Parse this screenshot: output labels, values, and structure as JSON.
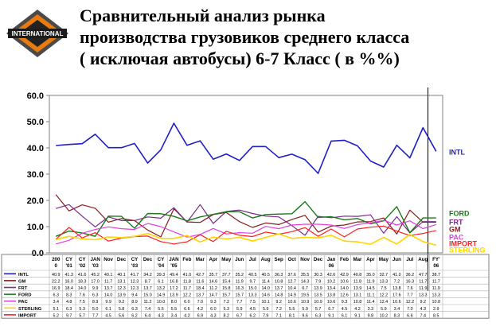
{
  "brand": {
    "logo_text": "INTERNATIONAL",
    "logo_icon": "international-diamond-logo"
  },
  "title_lines": [
    "Сравнительный анализ рынка",
    "производства грузовиков среднего класса",
    "( исключая автобусы) 6-7 Класс  ( в %%)"
  ],
  "chart_data": {
    "type": "line",
    "title": "Сравнительный анализ рынка производства грузовиков среднего класса ( исключая автобусы) 6-7 Класс  ( в %%)",
    "xlabel": "",
    "ylabel": "",
    "ylim": [
      0,
      60
    ],
    "yticks": [
      "0.0",
      "10.0",
      "20.0",
      "30.0",
      "40.0",
      "50.0",
      "60.0"
    ],
    "grid": false,
    "legend": "right",
    "categories": [
      [
        "200",
        "0"
      ],
      [
        "CY",
        "'01"
      ],
      [
        "CY",
        "'02"
      ],
      [
        "JAN",
        "'03"
      ],
      [
        "Nov",
        ""
      ],
      [
        "Dec",
        ""
      ],
      [
        "CY",
        "'03"
      ],
      [
        "Dec",
        ""
      ],
      [
        "CY",
        "'04"
      ],
      [
        "JAN",
        "'05"
      ],
      [
        "Feb",
        ""
      ],
      [
        "Mar",
        ""
      ],
      [
        "Apr",
        ""
      ],
      [
        "May",
        ""
      ],
      [
        "Jun",
        ""
      ],
      [
        "Jul",
        ""
      ],
      [
        "Aug",
        ""
      ],
      [
        "Sep",
        ""
      ],
      [
        "Oct",
        ""
      ],
      [
        "Nov",
        ""
      ],
      [
        "Dec",
        ""
      ],
      [
        "Jan",
        "06"
      ],
      [
        "Feb",
        ""
      ],
      [
        "Mar",
        ""
      ],
      [
        "Apr",
        ""
      ],
      [
        "May",
        ""
      ],
      [
        "Jun",
        ""
      ],
      [
        "Jul",
        ""
      ],
      [
        "Aug",
        ""
      ],
      [
        "FY'",
        "06"
      ]
    ],
    "series": [
      {
        "name": "INTL",
        "color": "#1f1fc8",
        "width": 1.6,
        "values": [
          40.9,
          41.3,
          41.6,
          45.2,
          40.1,
          40.1,
          41.7,
          34.2,
          39.3,
          49.4,
          41.0,
          42.7,
          35.7,
          37.7,
          35.2,
          40.5,
          40.5,
          36.3,
          37.6,
          35.5,
          30.3,
          42.6,
          42.9,
          40.8,
          35.0,
          32.7,
          41.0,
          36.2,
          47.7,
          38.7
        ]
      },
      {
        "name": "GM",
        "color": "#8b1a1a",
        "width": 1.2,
        "values": [
          22.2,
          16.0,
          18.3,
          17.0,
          11.7,
          13.1,
          12.3,
          8.7,
          6.1,
          16.8,
          11.8,
          11.6,
          14.6,
          15.4,
          11.9,
          9.7,
          11.4,
          10.8,
          12.7,
          14.3,
          7.9,
          10.2,
          10.6,
          11.8,
          11.9,
          13.3,
          7.2,
          16.3,
          11.7,
          11.7
        ]
      },
      {
        "name": "FRT",
        "color": "#7a2a8a",
        "width": 1.2,
        "values": [
          16.9,
          18.4,
          14.0,
          9.9,
          13.7,
          12.3,
          12.3,
          13.7,
          13.2,
          17.2,
          11.7,
          18.4,
          11.2,
          15.8,
          16.3,
          15.0,
          14.0,
          13.7,
          10.4,
          6.7,
          13.9,
          13.4,
          14.0,
          13.9,
          14.5,
          7.5,
          13.8,
          7.6,
          11.9,
          11.9
        ]
      },
      {
        "name": "FORD",
        "color": "#1a7a1a",
        "width": 1.4,
        "values": [
          6.3,
          8.3,
          7.6,
          6.3,
          14.0,
          13.9,
          9.4,
          15.0,
          14.9,
          13.9,
          12.2,
          13.7,
          14.7,
          15.7,
          15.7,
          13.3,
          14.6,
          14.8,
          14.9,
          19.5,
          13.5,
          13.8,
          12.6,
          13.1,
          11.1,
          12.2,
          17.6,
          7.7,
          13.3,
          13.3
        ]
      },
      {
        "name": "PAC",
        "color": "#e040e0",
        "width": 1.2,
        "values": [
          3.4,
          4.8,
          7.5,
          8.9,
          9.9,
          9.2,
          8.9,
          11.2,
          10.0,
          8.0,
          6.0,
          7.0,
          9.3,
          7.2,
          7.7,
          7.5,
          10.1,
          9.2,
          10.6,
          10.9,
          10.9,
          10.6,
          9.3,
          10.8,
          11.4,
          12.4,
          10.6,
          12.2,
          9.2,
          10.8
        ]
      },
      {
        "name": "IMPORT",
        "color": "#ff2020",
        "width": 1.2,
        "values": [
          5.2,
          9.7,
          5.7,
          7.7,
          4.5,
          5.6,
          6.2,
          6.4,
          4.3,
          3.4,
          4.2,
          6.9,
          4.3,
          8.2,
          6.7,
          6.2,
          7.9,
          7.1,
          8.1,
          9.6,
          6.3,
          9.1,
          6.1,
          9.1,
          9.8,
          10.2,
          8.3,
          6.6,
          7.4,
          8.5
        ]
      },
      {
        "name": "STERLING",
        "color": "#ffd400",
        "width": 1.6,
        "values": [
          5.1,
          6.3,
          5.3,
          5.0,
          6.1,
          5.8,
          6.3,
          7.4,
          5.5,
          5.5,
          6.6,
          4.2,
          6.0,
          5.3,
          5.9,
          4.5,
          5.9,
          7.2,
          5.5,
          5.9,
          5.7,
          6.7,
          4.5,
          4.2,
          3.3,
          5.9,
          3.4,
          7.0,
          4.3,
          2.9
        ]
      }
    ],
    "row_labels": [
      "INTL",
      "GM",
      "FRT",
      "FORD",
      "PAC",
      "STERLING",
      "IMPORT"
    ],
    "table_rows": [
      [
        "40.9",
        "41.3",
        "41.6",
        "45.2",
        "40.1",
        "40.1",
        "41.7",
        "34.2",
        "39.3",
        "49.4",
        "41.0",
        "42.7",
        "35.7",
        "37.7",
        "35.2",
        "40.5",
        "40.5",
        "36.3",
        "37.6",
        "35.5",
        "30.3",
        "42.6",
        "42.9",
        "40.8",
        "35.0",
        "32.7",
        "41.0",
        "36.2",
        "47.7",
        "38.7"
      ],
      [
        "22.2",
        "16.0",
        "18.3",
        "17.0",
        "11.7",
        "13.1",
        "12.3",
        "8.7",
        "6.1",
        "16.8",
        "11.8",
        "11.6",
        "14.6",
        "15.4",
        "11.9",
        "9.7",
        "11.4",
        "10.8",
        "12.7",
        "14.3",
        "7.9",
        "10.2",
        "10.6",
        "11.8",
        "11.9",
        "13.3",
        "7.2",
        "16.3",
        "11.7",
        "11.7"
      ],
      [
        "16.9",
        "18.4",
        "14.0",
        "9.9",
        "13.7",
        "12.3",
        "12.3",
        "13.7",
        "13.2",
        "17.2",
        "11.7",
        "18.4",
        "11.2",
        "15.8",
        "16.3",
        "15.0",
        "14.0",
        "13.7",
        "10.4",
        "6.7",
        "13.9",
        "13.4",
        "14.0",
        "13.9",
        "14.5",
        "7.5",
        "13.8",
        "7.6",
        "11.9",
        "11.9"
      ],
      [
        "6.3",
        "8.3",
        "7.6",
        "6.3",
        "14.0",
        "13.9",
        "9.4",
        "15.0",
        "14.9",
        "13.9",
        "12.2",
        "13.7",
        "14.7",
        "15.7",
        "15.7",
        "13.3",
        "14.6",
        "14.8",
        "14.9",
        "19.5",
        "13.5",
        "13.8",
        "12.6",
        "13.1",
        "11.1",
        "12.2",
        "17.6",
        "7.7",
        "13.3",
        "13.3"
      ],
      [
        "3.4",
        "4.8",
        "7.5",
        "8.9",
        "9.9",
        "9.2",
        "8.9",
        "11.2",
        "10.0",
        "8.0",
        "6.0",
        "7.0",
        "9.3",
        "7.2",
        "7.7",
        "7.5",
        "10.1",
        "9.2",
        "10.6",
        "10.9",
        "10.9",
        "10.6",
        "9.3",
        "10.8",
        "11.4",
        "12.4",
        "10.6",
        "12.2",
        "9.2",
        "10.8"
      ],
      [
        "5.1",
        "6.3",
        "5.3",
        "5.0",
        "6.1",
        "5.8",
        "6.3",
        "7.4",
        "5.5",
        "5.5",
        "6.6",
        "4.2",
        "6.0",
        "5.3",
        "5.9",
        "4.5",
        "5.9",
        "7.2",
        "5.5",
        "5.9",
        "5.7",
        "6.7",
        "4.5",
        "4.2",
        "3.3",
        "5.9",
        "3.4",
        "7.0",
        "4.3",
        "2.9"
      ],
      [
        "5.2",
        "9.7",
        "5.7",
        "7.7",
        "4.5",
        "5.6",
        "6.2",
        "6.4",
        "4.3",
        "3.4",
        "4.2",
        "6.9",
        "4.3",
        "8.2",
        "6.7",
        "6.2",
        "7.9",
        "7.1",
        "8.1",
        "9.6",
        "6.3",
        "9.1",
        "6.1",
        "9.1",
        "9.8",
        "10.2",
        "8.3",
        "6.6",
        "7.4",
        "8.5"
      ]
    ],
    "right_labels": [
      {
        "text": "INTL",
        "color": "#1f1fc8",
        "y": 38.7
      },
      {
        "text": "FORD",
        "color": "#1a7a1a",
        "y": 15.3
      },
      {
        "text": "FRT",
        "color": "#7a2a8a",
        "y": 11.9
      },
      {
        "text": "GM",
        "color": "#8b1a1a",
        "y": 9.2
      },
      {
        "text": "PAC",
        "color": "#e040e0",
        "y": 6.2
      },
      {
        "text": "IMPORT",
        "color": "#ff2020",
        "y": 3.8
      },
      {
        "text": "STERLING",
        "color": "#ffd400",
        "y": 1.4
      }
    ],
    "vertical_marker_after_index": 28
  }
}
